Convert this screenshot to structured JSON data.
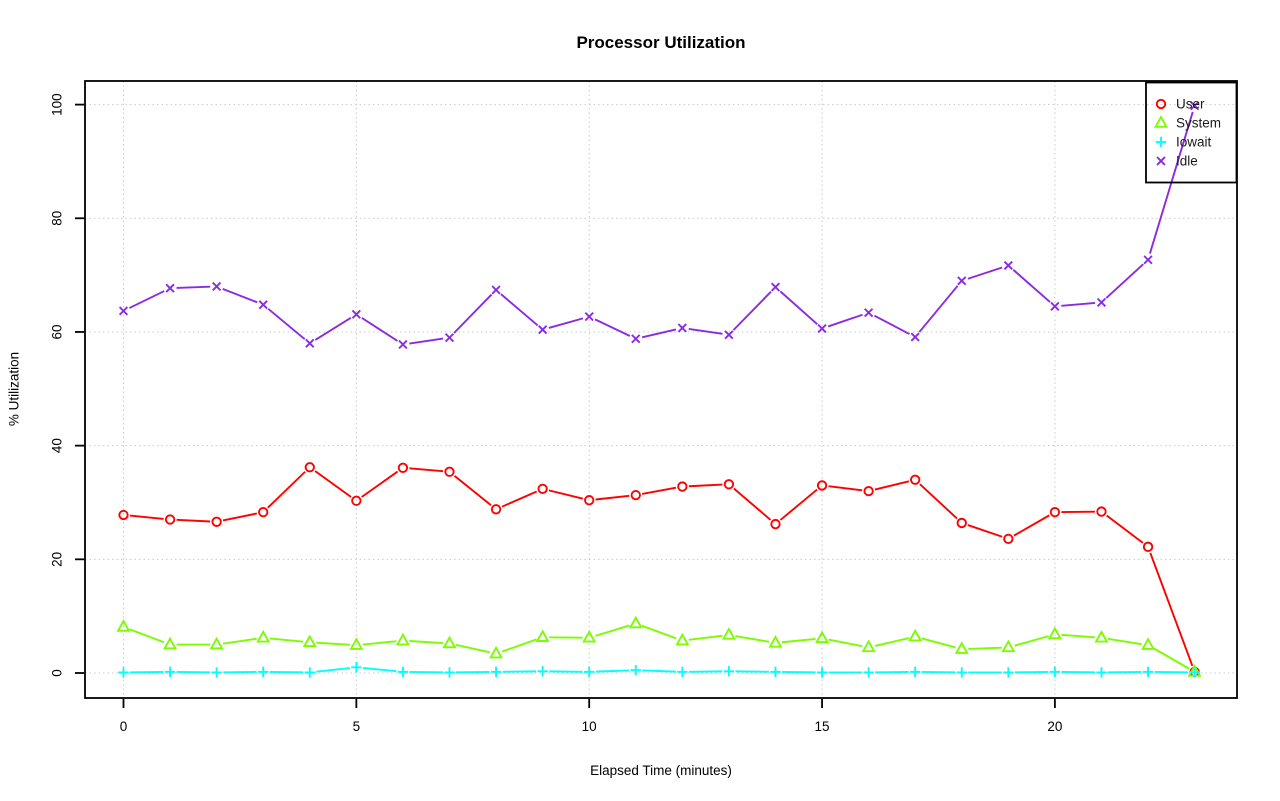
{
  "chart_data": {
    "type": "line",
    "title": "Processor Utilization",
    "xlabel": "Elapsed Time (minutes)",
    "ylabel": "% Utilization",
    "x": [
      0,
      1,
      2,
      3,
      4,
      5,
      6,
      7,
      8,
      9,
      10,
      11,
      12,
      13,
      14,
      15,
      16,
      17,
      18,
      19,
      20,
      21,
      22,
      23
    ],
    "x_ticks": [
      0,
      5,
      10,
      15,
      20
    ],
    "y_ticks": [
      0,
      20,
      40,
      60,
      80,
      100
    ],
    "xlim": [
      -0.9,
      23.9
    ],
    "ylim": [
      0,
      100
    ],
    "grid": true,
    "grid_style": "dotted",
    "legend_position": "top-right",
    "line_style": "points-and-lines",
    "axis_color": "#000000",
    "grid_color": "#c9c9c9",
    "background_color": "#ffffff",
    "series": [
      {
        "name": "User",
        "marker": "circle",
        "color": "#ff0000",
        "values": [
          27.8,
          27.0,
          26.6,
          28.3,
          36.2,
          30.3,
          36.1,
          35.4,
          28.8,
          32.4,
          30.4,
          31.3,
          32.8,
          33.2,
          26.2,
          33.0,
          32.0,
          34.0,
          26.4,
          23.6,
          28.3,
          28.4,
          22.2,
          0.2
        ]
      },
      {
        "name": "System",
        "marker": "triangle",
        "color": "#7cfc00",
        "values": [
          8.1,
          5.0,
          5.0,
          6.2,
          5.4,
          4.9,
          5.7,
          5.2,
          3.4,
          6.3,
          6.2,
          8.7,
          5.7,
          6.7,
          5.3,
          6.1,
          4.5,
          6.4,
          4.2,
          4.5,
          6.8,
          6.2,
          4.9,
          0.2
        ]
      },
      {
        "name": "Iowait",
        "marker": "plus",
        "color": "#00ffff",
        "values": [
          0.1,
          0.2,
          0.1,
          0.2,
          0.1,
          1.0,
          0.2,
          0.1,
          0.2,
          0.3,
          0.2,
          0.5,
          0.2,
          0.3,
          0.2,
          0.1,
          0.1,
          0.2,
          0.1,
          0.1,
          0.2,
          0.1,
          0.2,
          0.1
        ]
      },
      {
        "name": "Idle",
        "marker": "x",
        "color": "#8a2be2",
        "values": [
          63.7,
          67.7,
          68.0,
          64.8,
          58.0,
          63.1,
          57.8,
          59.0,
          67.4,
          60.4,
          62.7,
          58.8,
          60.7,
          59.5,
          67.9,
          60.6,
          63.4,
          59.1,
          69.0,
          71.7,
          64.5,
          65.2,
          72.7,
          99.8
        ]
      }
    ]
  }
}
